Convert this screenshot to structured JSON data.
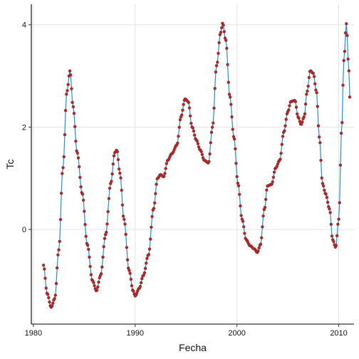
{
  "chart_data": {
    "type": "line",
    "title": "",
    "xlabel": "Fecha",
    "ylabel": "Tc",
    "xlim": [
      1979.8,
      2011.5
    ],
    "ylim": [
      -1.85,
      4.4
    ],
    "x_ticks": [
      1980,
      1990,
      2000,
      2010
    ],
    "y_ticks": [
      0,
      2,
      4
    ],
    "x_tick_labels": [
      "1980",
      "1990",
      "2000",
      "2010"
    ],
    "y_tick_labels": [
      "0",
      "2",
      "4"
    ],
    "grid": true,
    "legend": "none",
    "line_color": "#1f8fe8",
    "point_color": "#a52a2a",
    "keypoints": [
      [
        1981.0,
        -0.7
      ],
      [
        1981.35,
        -1.25
      ],
      [
        1981.75,
        -1.52
      ],
      [
        1982.1,
        -1.35
      ],
      [
        1982.5,
        -0.4
      ],
      [
        1982.9,
        1.2
      ],
      [
        1983.3,
        2.7
      ],
      [
        1983.6,
        3.1
      ],
      [
        1983.9,
        2.4
      ],
      [
        1984.3,
        1.5
      ],
      [
        1984.8,
        0.7
      ],
      [
        1985.3,
        -0.3
      ],
      [
        1985.8,
        -1.0
      ],
      [
        1986.2,
        -1.2
      ],
      [
        1986.6,
        -0.9
      ],
      [
        1987.1,
        -0.1
      ],
      [
        1987.6,
        0.9
      ],
      [
        1988.0,
        1.5
      ],
      [
        1988.2,
        1.55
      ],
      [
        1988.5,
        1.1
      ],
      [
        1988.9,
        0.2
      ],
      [
        1989.4,
        -0.8
      ],
      [
        1989.8,
        -1.2
      ],
      [
        1990.0,
        -1.3
      ],
      [
        1990.4,
        -1.15
      ],
      [
        1990.8,
        -0.9
      ],
      [
        1991.3,
        -0.5
      ],
      [
        1991.8,
        0.4
      ],
      [
        1992.2,
        1.0
      ],
      [
        1992.5,
        1.07
      ],
      [
        1992.8,
        1.03
      ],
      [
        1993.2,
        1.35
      ],
      [
        1993.6,
        1.48
      ],
      [
        1994.1,
        1.65
      ],
      [
        1994.5,
        2.2
      ],
      [
        1994.9,
        2.55
      ],
      [
        1995.2,
        2.5
      ],
      [
        1995.6,
        2.0
      ],
      [
        1996.0,
        1.75
      ],
      [
        1996.4,
        1.55
      ],
      [
        1996.8,
        1.35
      ],
      [
        1997.2,
        1.3
      ],
      [
        1997.6,
        2.0
      ],
      [
        1998.0,
        3.2
      ],
      [
        1998.4,
        3.85
      ],
      [
        1998.6,
        4.03
      ],
      [
        1998.9,
        3.7
      ],
      [
        1999.3,
        2.6
      ],
      [
        1999.7,
        1.8
      ],
      [
        2000.1,
        0.9
      ],
      [
        2000.5,
        0.2
      ],
      [
        2000.9,
        -0.2
      ],
      [
        2001.3,
        -0.32
      ],
      [
        2001.7,
        -0.38
      ],
      [
        2002.0,
        -0.45
      ],
      [
        2002.3,
        -0.3
      ],
      [
        2002.7,
        0.4
      ],
      [
        2003.0,
        0.85
      ],
      [
        2003.4,
        0.88
      ],
      [
        2003.8,
        1.2
      ],
      [
        2004.2,
        1.35
      ],
      [
        2004.6,
        1.9
      ],
      [
        2005.0,
        2.3
      ],
      [
        2005.3,
        2.5
      ],
      [
        2005.7,
        2.52
      ],
      [
        2006.0,
        2.2
      ],
      [
        2006.3,
        2.05
      ],
      [
        2006.6,
        2.2
      ],
      [
        2006.9,
        2.7
      ],
      [
        2007.2,
        3.1
      ],
      [
        2007.5,
        3.05
      ],
      [
        2007.8,
        2.7
      ],
      [
        2008.1,
        1.8
      ],
      [
        2008.4,
        0.9
      ],
      [
        2008.7,
        0.7
      ],
      [
        2009.1,
        0.4
      ],
      [
        2009.4,
        -0.2
      ],
      [
        2009.7,
        -0.35
      ],
      [
        2010.0,
        0.2
      ],
      [
        2010.3,
        2.0
      ],
      [
        2010.5,
        3.3
      ],
      [
        2010.75,
        4.02
      ],
      [
        2011.0,
        3.1
      ],
      [
        2011.1,
        2.55
      ]
    ]
  }
}
